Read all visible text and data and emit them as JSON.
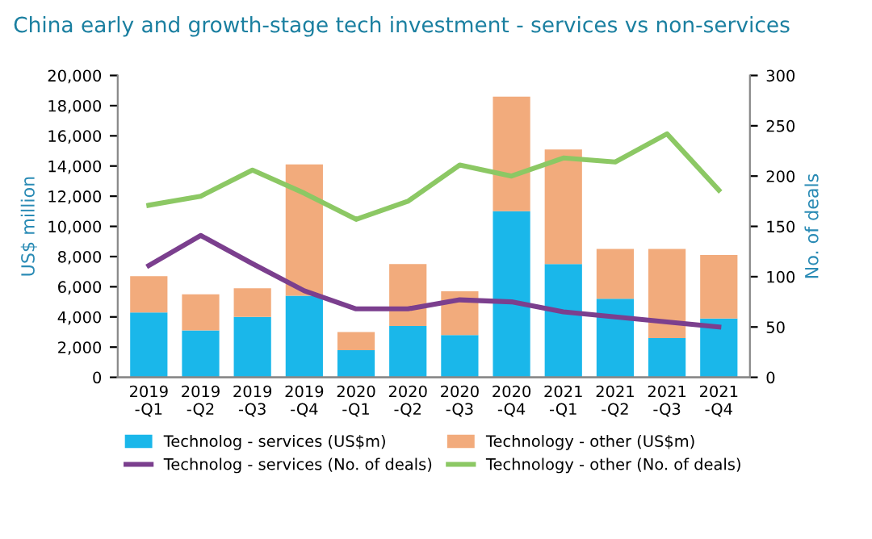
{
  "chart_data": {
    "type": "bar",
    "title": "China early and growth-stage tech investment - services vs non-services",
    "ylabel": "US$ million",
    "y2label": "No. of deals",
    "categories": [
      "2019\n-Q1",
      "2019\n-Q2",
      "2019\n-Q3",
      "2019\n-Q4",
      "2020\n-Q1",
      "2020\n-Q2",
      "2020\n-Q3",
      "2020\n-Q4",
      "2021\n-Q1",
      "2021\n-Q2",
      "2021\n-Q3",
      "2021\n-Q4"
    ],
    "stacked": true,
    "series": [
      {
        "name": "Technolog - services (US$m)",
        "color": "#1ab7ea",
        "values": [
          4300,
          3100,
          4000,
          5400,
          1800,
          3400,
          2800,
          11000,
          7500,
          5200,
          2600,
          3900
        ]
      },
      {
        "name": "Technology - other (US$m)",
        "color": "#f2ab7c",
        "values": [
          2400,
          2400,
          1900,
          8700,
          1200,
          4100,
          2900,
          7600,
          7600,
          3300,
          5900,
          4200
        ]
      },
      {
        "name": "Technolog - services (No. of deals)",
        "type": "line",
        "axis": "y2",
        "color": "#7b3f8e",
        "values": [
          111,
          141,
          113,
          86,
          68,
          68,
          77,
          75,
          65,
          60,
          55,
          50
        ]
      },
      {
        "name": "Technology - other (No. of deals)",
        "type": "line",
        "axis": "y2",
        "color": "#8cc864",
        "values": [
          171,
          180,
          206,
          183,
          157,
          175,
          211,
          200,
          218,
          214,
          242,
          186
        ]
      }
    ],
    "ylim": [
      0,
      20000
    ],
    "yticks": [
      {
        "value": 0,
        "label": "0"
      },
      {
        "value": 2000,
        "label": "2,000"
      },
      {
        "value": 4000,
        "label": "4,000"
      },
      {
        "value": 6000,
        "label": "6,000"
      },
      {
        "value": 8000,
        "label": "8,000"
      },
      {
        "value": 10000,
        "label": "10,000"
      },
      {
        "value": 12000,
        "label": "12,000"
      },
      {
        "value": 14000,
        "label": "14,000"
      },
      {
        "value": 16000,
        "label": "16,000"
      },
      {
        "value": 18000,
        "label": "18,000"
      },
      {
        "value": 20000,
        "label": "20,000"
      }
    ],
    "y2lim": [
      0,
      300
    ],
    "y2ticks": [
      0,
      50,
      100,
      150,
      200,
      250,
      300
    ],
    "grid": false,
    "legend": "bottom"
  }
}
